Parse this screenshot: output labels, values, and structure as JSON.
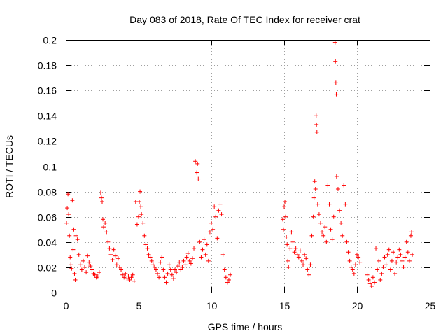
{
  "chart_data": {
    "type": "scatter",
    "title": "Day 083 of 2018, Rate Of TEC Index for receiver crat",
    "xlabel": "GPS time / hours",
    "ylabel": "ROTI / TECUs",
    "xlim": [
      0,
      25
    ],
    "ylim": [
      0,
      0.2
    ],
    "x_ticks": [
      0,
      5,
      10,
      15,
      20,
      25
    ],
    "x_tick_labels": [
      "0",
      "5",
      "10",
      "15",
      "20",
      "25"
    ],
    "y_ticks": [
      0,
      0.02,
      0.04,
      0.06,
      0.08,
      0.1,
      0.12,
      0.14,
      0.16,
      0.18,
      0.2
    ],
    "y_tick_labels": [
      "0",
      "0.02",
      "0.04",
      "0.06",
      "0.08",
      "0.1",
      "0.12",
      "0.14",
      "0.16",
      "0.18",
      "0.2"
    ],
    "grid": true,
    "marker": "+",
    "color": "#ff0000",
    "series": [
      {
        "name": "ROTI",
        "points": [
          [
            0.05,
            0.055
          ],
          [
            0.1,
            0.067
          ],
          [
            0.15,
            0.078
          ],
          [
            0.2,
            0.062
          ],
          [
            0.25,
            0.045
          ],
          [
            0.3,
            0.028
          ],
          [
            0.35,
            0.022
          ],
          [
            0.4,
            0.019
          ],
          [
            0.45,
            0.073
          ],
          [
            0.5,
            0.034
          ],
          [
            0.55,
            0.05
          ],
          [
            0.6,
            0.015
          ],
          [
            0.65,
            0.01
          ],
          [
            0.7,
            0.045
          ],
          [
            0.8,
            0.042
          ],
          [
            0.9,
            0.03
          ],
          [
            1.0,
            0.022
          ],
          [
            1.1,
            0.018
          ],
          [
            1.2,
            0.025
          ],
          [
            1.3,
            0.02
          ],
          [
            1.4,
            0.016
          ],
          [
            1.5,
            0.029
          ],
          [
            1.6,
            0.024
          ],
          [
            1.7,
            0.021
          ],
          [
            1.8,
            0.018
          ],
          [
            1.9,
            0.015
          ],
          [
            2.0,
            0.014
          ],
          [
            2.1,
            0.012
          ],
          [
            2.2,
            0.013
          ],
          [
            2.3,
            0.016
          ],
          [
            2.4,
            0.079
          ],
          [
            2.45,
            0.075
          ],
          [
            2.5,
            0.072
          ],
          [
            2.55,
            0.058
          ],
          [
            2.6,
            0.052
          ],
          [
            2.7,
            0.055
          ],
          [
            2.8,
            0.048
          ],
          [
            2.9,
            0.04
          ],
          [
            3.0,
            0.035
          ],
          [
            3.1,
            0.03
          ],
          [
            3.2,
            0.026
          ],
          [
            3.3,
            0.034
          ],
          [
            3.4,
            0.029
          ],
          [
            3.5,
            0.022
          ],
          [
            3.6,
            0.027
          ],
          [
            3.7,
            0.02
          ],
          [
            3.8,
            0.018
          ],
          [
            3.9,
            0.014
          ],
          [
            4.0,
            0.012
          ],
          [
            4.1,
            0.015
          ],
          [
            4.2,
            0.011
          ],
          [
            4.3,
            0.013
          ],
          [
            4.4,
            0.01
          ],
          [
            4.5,
            0.012
          ],
          [
            4.6,
            0.014
          ],
          [
            4.7,
            0.009
          ],
          [
            4.8,
            0.072
          ],
          [
            4.9,
            0.054
          ],
          [
            5.0,
            0.06
          ],
          [
            5.05,
            0.072
          ],
          [
            5.1,
            0.08
          ],
          [
            5.15,
            0.068
          ],
          [
            5.2,
            0.062
          ],
          [
            5.3,
            0.055
          ],
          [
            5.4,
            0.045
          ],
          [
            5.5,
            0.038
          ],
          [
            5.6,
            0.035
          ],
          [
            5.7,
            0.03
          ],
          [
            5.8,
            0.028
          ],
          [
            5.9,
            0.025
          ],
          [
            6.0,
            0.022
          ],
          [
            6.1,
            0.02
          ],
          [
            6.2,
            0.018
          ],
          [
            6.3,
            0.015
          ],
          [
            6.4,
            0.012
          ],
          [
            6.5,
            0.024
          ],
          [
            6.6,
            0.028
          ],
          [
            6.7,
            0.018
          ],
          [
            6.8,
            0.012
          ],
          [
            6.9,
            0.008
          ],
          [
            7.0,
            0.015
          ],
          [
            7.1,
            0.022
          ],
          [
            7.2,
            0.018
          ],
          [
            7.3,
            0.014
          ],
          [
            7.4,
            0.011
          ],
          [
            7.5,
            0.018
          ],
          [
            7.6,
            0.016
          ],
          [
            7.7,
            0.021
          ],
          [
            7.8,
            0.024
          ],
          [
            7.9,
            0.018
          ],
          [
            8.0,
            0.02
          ],
          [
            8.1,
            0.025
          ],
          [
            8.2,
            0.022
          ],
          [
            8.3,
            0.028
          ],
          [
            8.4,
            0.031
          ],
          [
            8.5,
            0.025
          ],
          [
            8.6,
            0.023
          ],
          [
            8.7,
            0.027
          ],
          [
            8.8,
            0.035
          ],
          [
            8.9,
            0.104
          ],
          [
            9.0,
            0.095
          ],
          [
            9.05,
            0.102
          ],
          [
            9.1,
            0.09
          ],
          [
            9.2,
            0.04
          ],
          [
            9.3,
            0.028
          ],
          [
            9.4,
            0.034
          ],
          [
            9.5,
            0.042
          ],
          [
            9.6,
            0.03
          ],
          [
            9.7,
            0.038
          ],
          [
            9.8,
            0.025
          ],
          [
            9.9,
            0.048
          ],
          [
            10.0,
            0.055
          ],
          [
            10.1,
            0.05
          ],
          [
            10.2,
            0.068
          ],
          [
            10.3,
            0.06
          ],
          [
            10.4,
            0.043
          ],
          [
            10.5,
            0.065
          ],
          [
            10.6,
            0.07
          ],
          [
            10.7,
            0.062
          ],
          [
            10.8,
            0.03
          ],
          [
            10.9,
            0.018
          ],
          [
            11.0,
            0.012
          ],
          [
            11.1,
            0.008
          ],
          [
            11.2,
            0.01
          ],
          [
            11.3,
            0.014
          ],
          [
            14.9,
            0.058
          ],
          [
            14.95,
            0.05
          ],
          [
            15.0,
            0.068
          ],
          [
            15.05,
            0.072
          ],
          [
            15.1,
            0.06
          ],
          [
            15.15,
            0.044
          ],
          [
            15.2,
            0.038
          ],
          [
            15.25,
            0.025
          ],
          [
            15.3,
            0.02
          ],
          [
            15.4,
            0.035
          ],
          [
            15.5,
            0.048
          ],
          [
            15.6,
            0.04
          ],
          [
            15.7,
            0.032
          ],
          [
            15.8,
            0.035
          ],
          [
            15.9,
            0.03
          ],
          [
            16.0,
            0.028
          ],
          [
            16.1,
            0.033
          ],
          [
            16.2,
            0.025
          ],
          [
            16.3,
            0.022
          ],
          [
            16.4,
            0.03
          ],
          [
            16.5,
            0.027
          ],
          [
            16.6,
            0.018
          ],
          [
            16.7,
            0.014
          ],
          [
            16.8,
            0.022
          ],
          [
            16.9,
            0.045
          ],
          [
            17.0,
            0.06
          ],
          [
            17.05,
            0.075
          ],
          [
            17.1,
            0.088
          ],
          [
            17.15,
            0.082
          ],
          [
            17.2,
            0.14
          ],
          [
            17.22,
            0.133
          ],
          [
            17.25,
            0.127
          ],
          [
            17.3,
            0.07
          ],
          [
            17.4,
            0.062
          ],
          [
            17.5,
            0.055
          ],
          [
            17.6,
            0.048
          ],
          [
            17.7,
            0.045
          ],
          [
            17.8,
            0.052
          ],
          [
            17.9,
            0.04
          ],
          [
            18.0,
            0.085
          ],
          [
            18.1,
            0.07
          ],
          [
            18.2,
            0.05
          ],
          [
            18.3,
            0.042
          ],
          [
            18.4,
            0.06
          ],
          [
            18.5,
            0.198
          ],
          [
            18.52,
            0.183
          ],
          [
            18.55,
            0.166
          ],
          [
            18.58,
            0.157
          ],
          [
            18.6,
            0.092
          ],
          [
            18.7,
            0.082
          ],
          [
            18.8,
            0.065
          ],
          [
            18.9,
            0.055
          ],
          [
            19.0,
            0.045
          ],
          [
            19.1,
            0.085
          ],
          [
            19.2,
            0.07
          ],
          [
            19.3,
            0.04
          ],
          [
            19.4,
            0.032
          ],
          [
            19.5,
            0.025
          ],
          [
            19.6,
            0.02
          ],
          [
            19.7,
            0.018
          ],
          [
            19.8,
            0.015
          ],
          [
            19.9,
            0.022
          ],
          [
            20.0,
            0.03
          ],
          [
            20.1,
            0.028
          ],
          [
            20.2,
            0.024
          ],
          [
            20.7,
            0.014
          ],
          [
            20.8,
            0.01
          ],
          [
            20.9,
            0.007
          ],
          [
            21.0,
            0.005
          ],
          [
            21.1,
            0.012
          ],
          [
            21.2,
            0.008
          ],
          [
            21.3,
            0.035
          ],
          [
            21.4,
            0.018
          ],
          [
            21.5,
            0.025
          ],
          [
            21.6,
            0.01
          ],
          [
            21.7,
            0.015
          ],
          [
            21.8,
            0.02
          ],
          [
            21.9,
            0.028
          ],
          [
            22.0,
            0.022
          ],
          [
            22.1,
            0.03
          ],
          [
            22.2,
            0.034
          ],
          [
            22.3,
            0.018
          ],
          [
            22.4,
            0.025
          ],
          [
            22.5,
            0.032
          ],
          [
            22.6,
            0.015
          ],
          [
            22.7,
            0.024
          ],
          [
            22.8,
            0.028
          ],
          [
            22.9,
            0.034
          ],
          [
            23.0,
            0.03
          ],
          [
            23.1,
            0.025
          ],
          [
            23.2,
            0.02
          ],
          [
            23.3,
            0.028
          ],
          [
            23.4,
            0.04
          ],
          [
            23.5,
            0.032
          ],
          [
            23.6,
            0.025
          ],
          [
            23.7,
            0.045
          ],
          [
            23.75,
            0.048
          ],
          [
            23.8,
            0.03
          ]
        ]
      }
    ]
  }
}
